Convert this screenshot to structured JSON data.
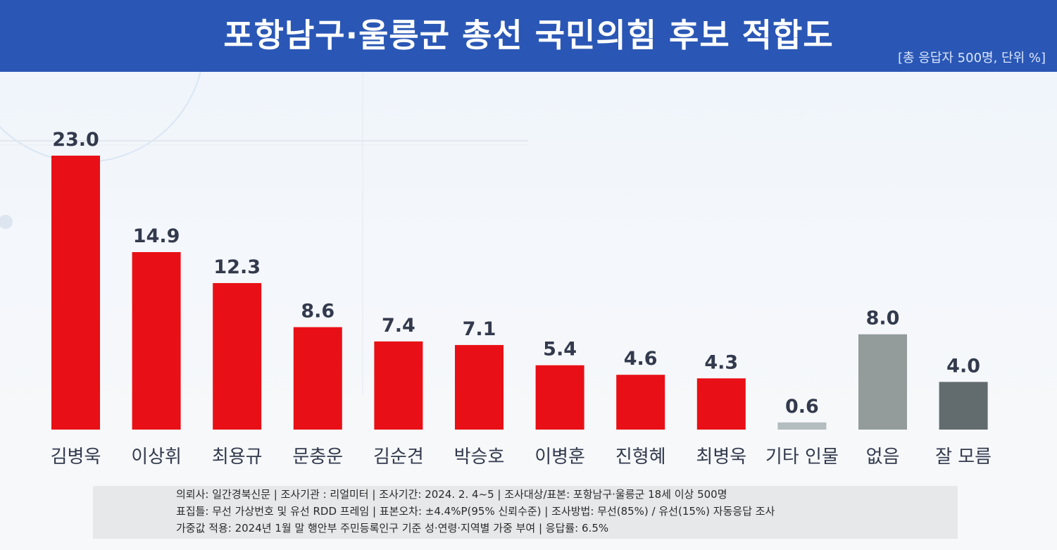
{
  "header": {
    "title": "포항남구·울릉군 총선 국민의힘 후보 적합도",
    "unit_note": "[총 응답자 500명, 단위 %]"
  },
  "colors": {
    "header_bg": "#2a57b5",
    "candidate_bar": "#e90f16",
    "other_bar": "#b3bcbe",
    "none_bar": "#939b9b",
    "unknown_bar": "#626b6e",
    "label_text": "#333a4d"
  },
  "chart_data": {
    "type": "bar",
    "categories": [
      "김병욱",
      "이상휘",
      "최용규",
      "문충운",
      "김순견",
      "박승호",
      "이병훈",
      "진형혜",
      "최병욱",
      "기타 인물",
      "없음",
      "잘 모름"
    ],
    "values": [
      23.0,
      14.9,
      12.3,
      8.6,
      7.4,
      7.1,
      5.4,
      4.6,
      4.3,
      0.6,
      8.0,
      4.0
    ],
    "value_labels": [
      "23.0",
      "14.9",
      "12.3",
      "8.6",
      "7.4",
      "7.1",
      "5.4",
      "4.6",
      "4.3",
      "0.6",
      "8.0",
      "4.0"
    ],
    "bar_colors": [
      "#e90f16",
      "#e90f16",
      "#e90f16",
      "#e90f16",
      "#e90f16",
      "#e90f16",
      "#e90f16",
      "#e90f16",
      "#e90f16",
      "#b3bcbe",
      "#939b9b",
      "#626b6e"
    ],
    "ylim": [
      0,
      25
    ],
    "grid": false,
    "legend": "none"
  },
  "footer": {
    "line1": "의뢰사: 일간경북신문 | 조사기관 : 리얼미터 | 조사기간: 2024. 2. 4~5 | 조사대상/표본: 포항남구·울릉군 18세 이상 500명",
    "line2": "표집틀: 무선 가상번호 및 유선 RDD 프레임 | 표본오차: ±4.4%P(95% 신뢰수준) | 조사방법: 무선(85%) / 유선(15%) 자동응답 조사",
    "line3": "가중값 적용: 2024년 1월 말 행안부 주민등록인구 기준 성·연령·지역별 가중 부여 | 응답률: 6.5%"
  }
}
